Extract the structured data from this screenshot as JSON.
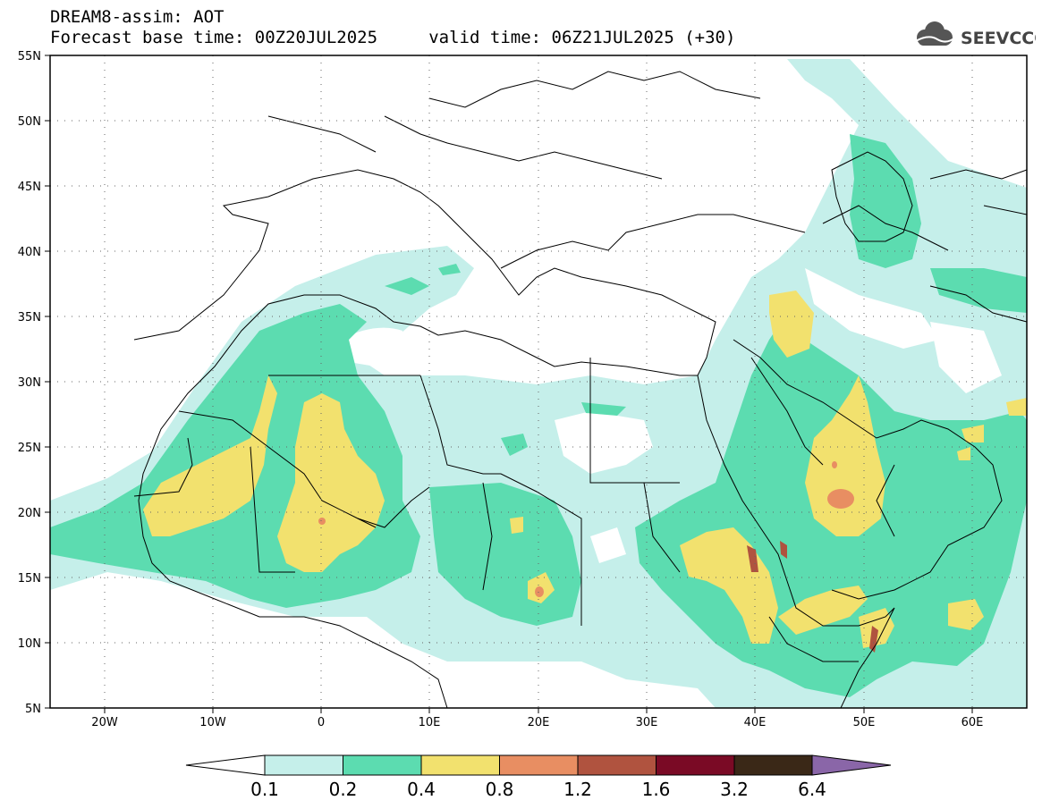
{
  "header": {
    "title_line1": "DREAM8-assim: AOT",
    "title_line2": "Forecast base time: 00Z20JUL2025     valid time: 06Z21JUL2025 (+30)",
    "logo_text": "SEEVCCC"
  },
  "map": {
    "lon_labels": [
      "20W",
      "10W",
      "0",
      "10E",
      "20E",
      "30E",
      "40E",
      "50E",
      "60E"
    ],
    "lat_labels": [
      "55N",
      "50N",
      "45N",
      "40N",
      "35N",
      "30N",
      "25N",
      "20N",
      "15N",
      "10N",
      "5N"
    ],
    "lon_range": [
      -25,
      65
    ],
    "lat_range": [
      5,
      55
    ],
    "grid": "dotted"
  },
  "colorbar": {
    "labels": [
      "0.1",
      "0.2",
      "0.4",
      "0.8",
      "1.2",
      "1.6",
      "3.2",
      "6.4"
    ],
    "colors": [
      "#c5efea",
      "#5cdcb0",
      "#f2e16e",
      "#e88e62",
      "#b0533f",
      "#7a0a25",
      "#3a2817",
      "#8a66a8"
    ]
  }
}
